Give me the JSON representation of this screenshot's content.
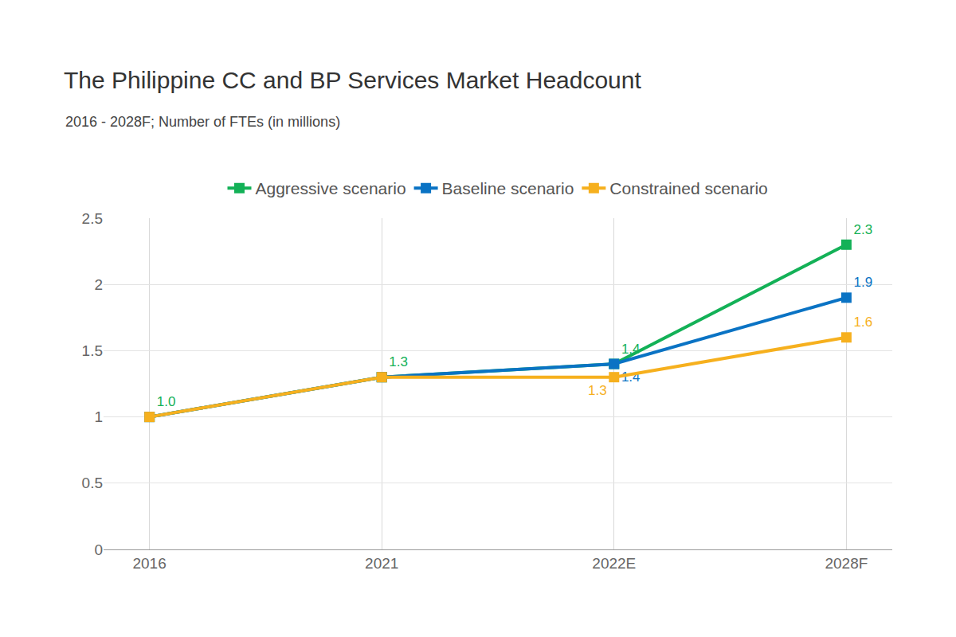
{
  "chart_data": {
    "type": "line",
    "title": "The Philippine CC and BP Services Market Headcount",
    "subtitle": "2016 - 2028F; Number of FTEs (in millions)",
    "categories": [
      "2016",
      "2021",
      "2022E",
      "2028F"
    ],
    "series": [
      {
        "name": "Aggressive scenario",
        "color": "#13b157",
        "marker": "square",
        "values": [
          1.0,
          1.3,
          1.4,
          2.3
        ],
        "value_labels": [
          "1.0",
          "1.3",
          "1.4",
          "2.3"
        ]
      },
      {
        "name": "Baseline scenario",
        "color": "#0a73c4",
        "marker": "square",
        "values": [
          1.0,
          1.3,
          1.4,
          1.9
        ],
        "value_labels": [
          null,
          null,
          "1.4",
          "1.9"
        ]
      },
      {
        "name": "Constrained scenario",
        "color": "#f6b01e",
        "marker": "square",
        "values": [
          1.0,
          1.3,
          1.3,
          1.6
        ],
        "value_labels": [
          null,
          null,
          "1.3",
          "1.6"
        ]
      }
    ],
    "ylim": [
      0,
      2.5
    ],
    "yticks": [
      0,
      0.5,
      1,
      1.5,
      2,
      2.5
    ],
    "grid": true,
    "legend": "top",
    "data_labels": true
  }
}
